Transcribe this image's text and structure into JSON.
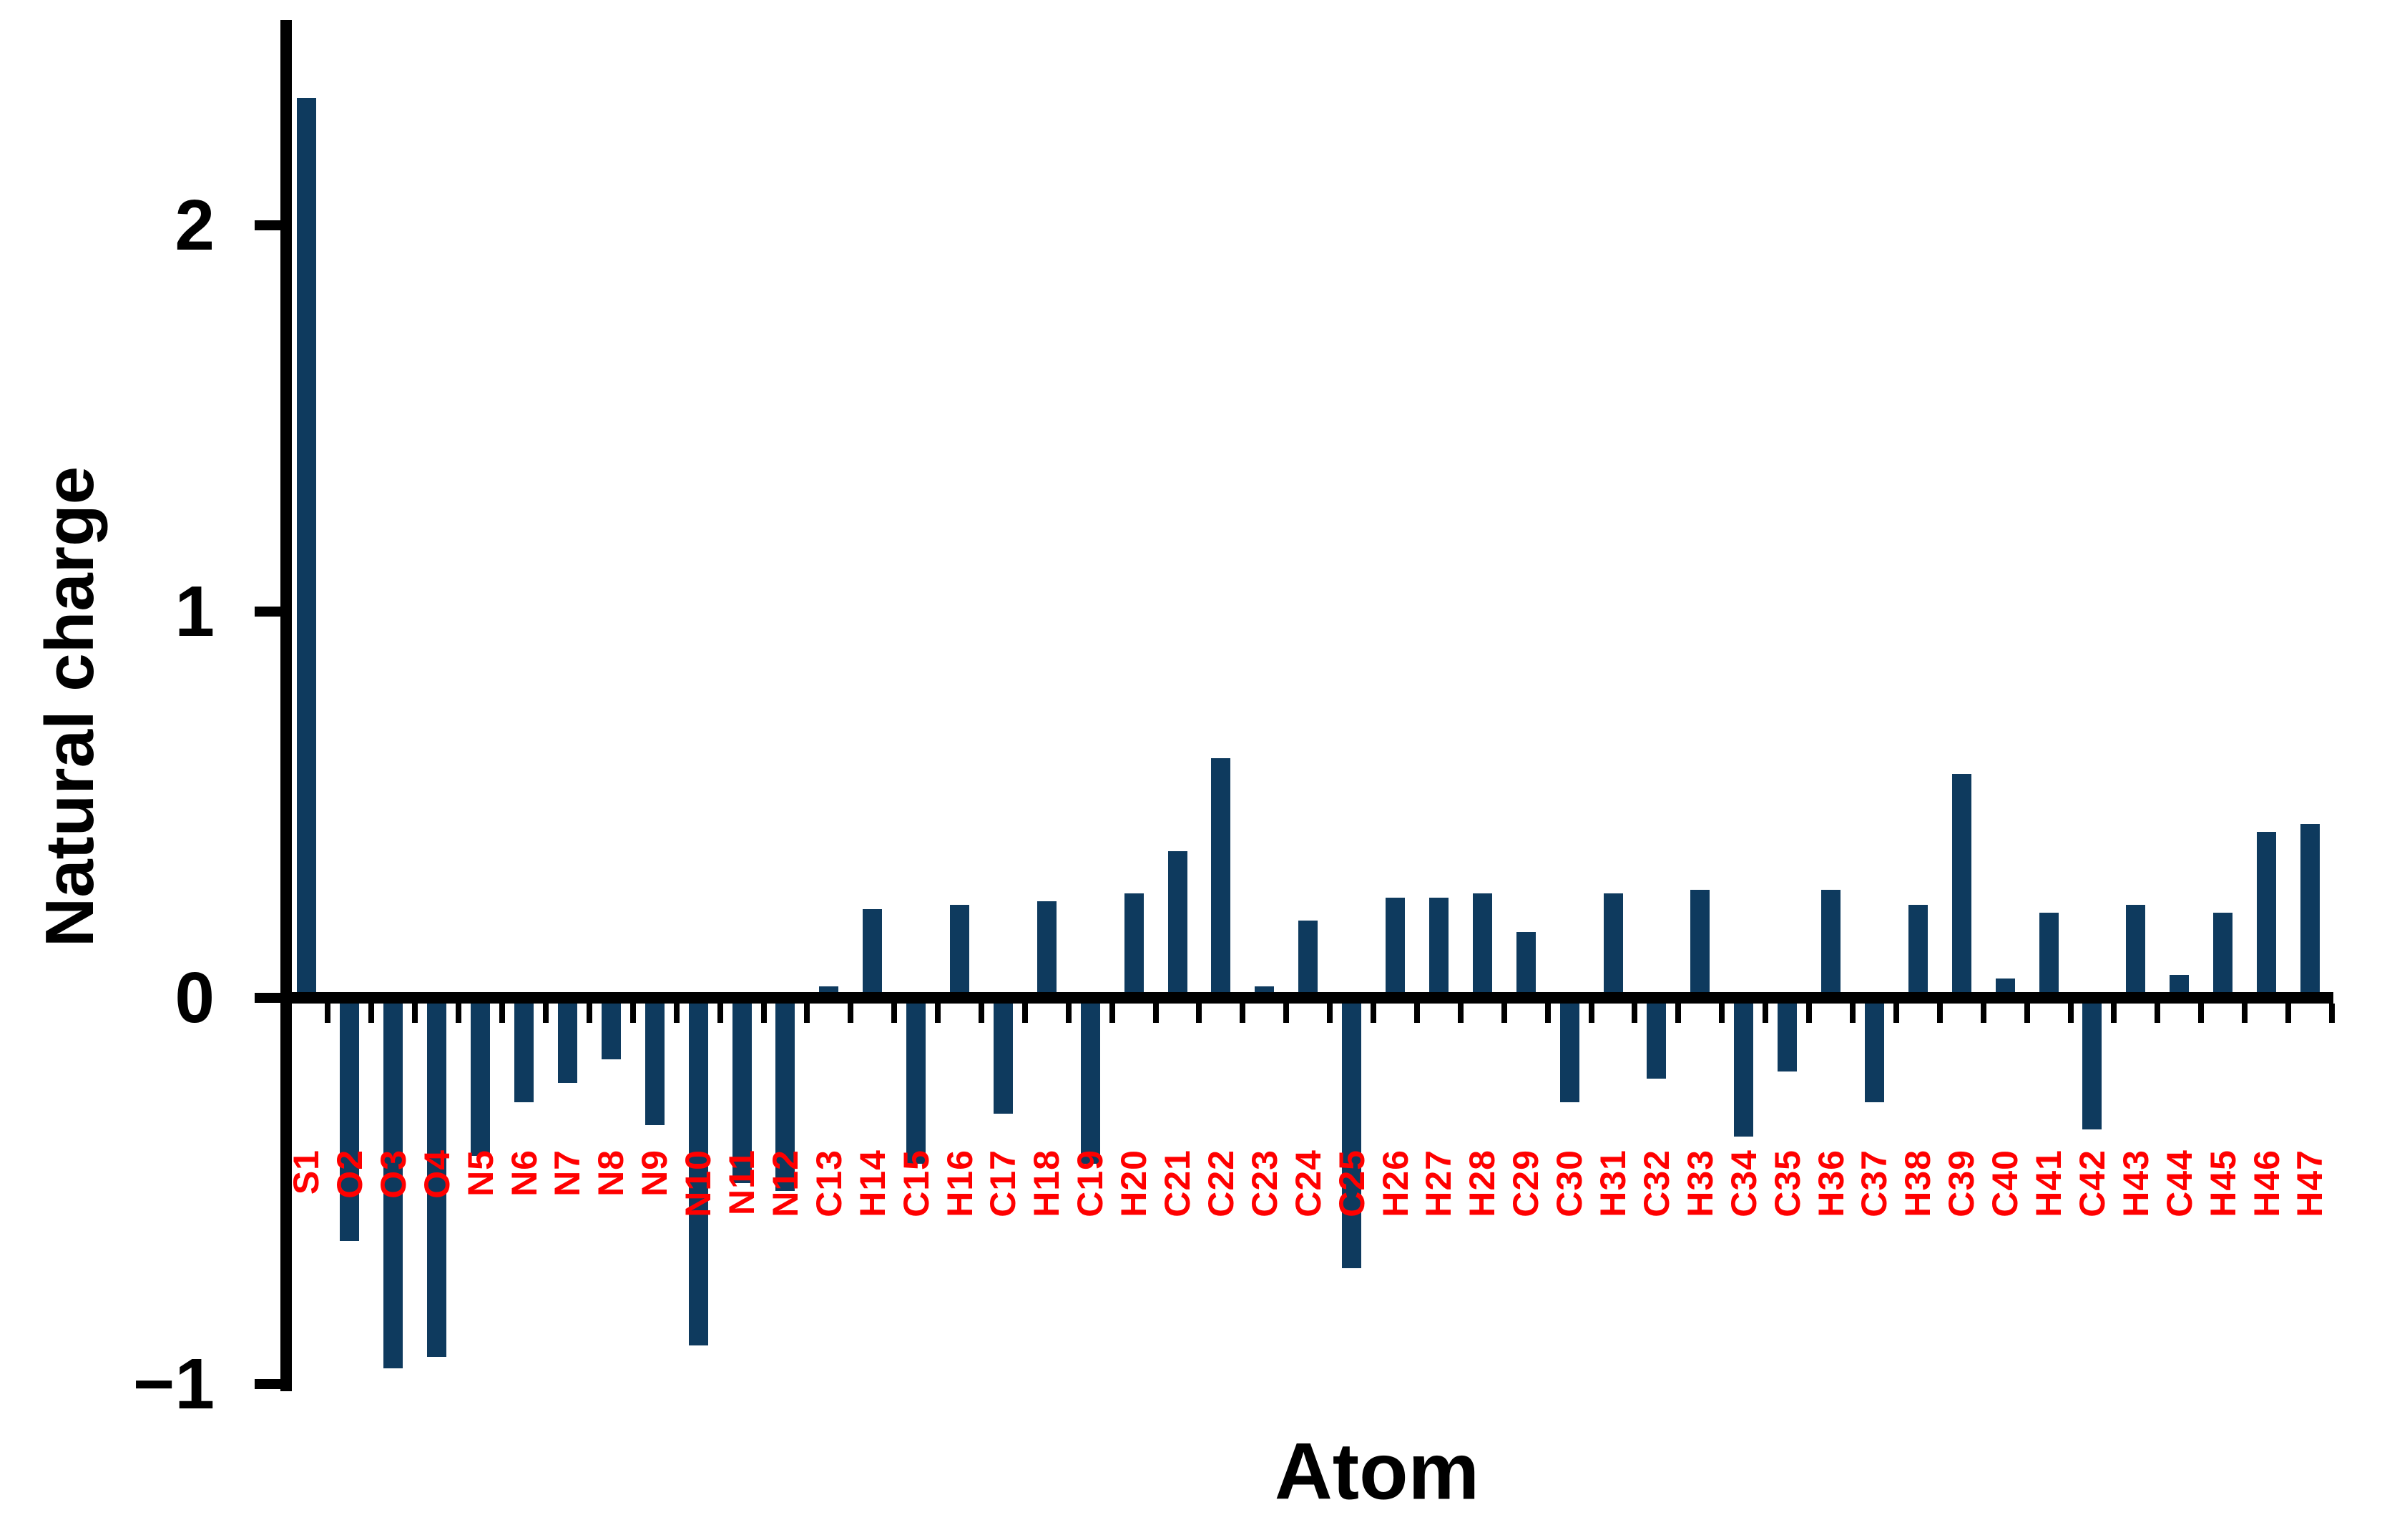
{
  "chart_data": {
    "type": "bar",
    "title": "",
    "xlabel": "Atom",
    "ylabel": "Natural charge",
    "categories": [
      "S1",
      "O2",
      "O3",
      "O4",
      "N5",
      "N6",
      "N7",
      "N8",
      "N9",
      "N10",
      "N11",
      "N12",
      "C13",
      "H14",
      "C15",
      "H16",
      "C17",
      "H18",
      "C19",
      "H20",
      "C21",
      "C22",
      "C23",
      "C24",
      "C25",
      "H26",
      "H27",
      "H28",
      "C29",
      "C30",
      "H31",
      "C32",
      "H33",
      "C34",
      "C35",
      "H36",
      "C37",
      "H38",
      "C39",
      "C40",
      "H41",
      "C42",
      "H43",
      "C44",
      "H45",
      "H46",
      "H47"
    ],
    "values": [
      2.33,
      -0.63,
      -0.96,
      -0.93,
      -0.41,
      -0.27,
      -0.22,
      -0.16,
      -0.33,
      -0.9,
      -0.48,
      -0.5,
      0.03,
      0.23,
      -0.43,
      0.24,
      -0.3,
      0.25,
      -0.43,
      0.27,
      0.38,
      0.62,
      0.03,
      0.2,
      -0.7,
      0.26,
      0.26,
      0.27,
      0.17,
      -0.27,
      0.27,
      -0.21,
      0.28,
      -0.36,
      -0.19,
      0.28,
      -0.27,
      0.24,
      0.58,
      0.05,
      0.22,
      -0.34,
      0.24,
      0.06,
      0.22,
      0.43,
      0.45
    ],
    "yticks": [
      {
        "label": "2",
        "value": 2
      },
      {
        "label": "1",
        "value": 1
      },
      {
        "label": "0",
        "value": 0
      },
      {
        "label": "−1",
        "value": -1
      }
    ],
    "ylim": [
      -1.05,
      2.5
    ],
    "grid": false,
    "legend": "none",
    "bar_color": "#0e3a5e",
    "category_label_color": "#ff0000",
    "axis_color": "#000000"
  }
}
